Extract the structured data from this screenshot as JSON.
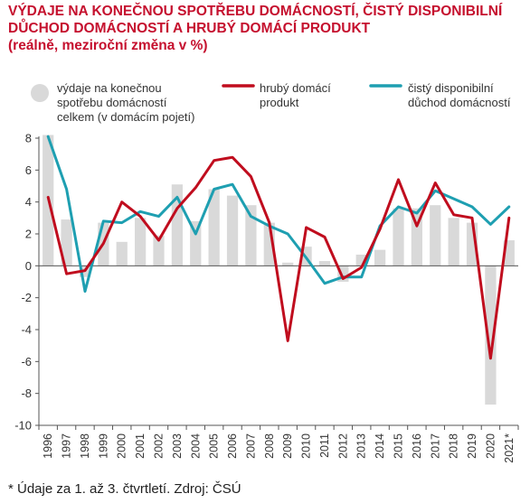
{
  "title_lines": [
    "VÝDAJE NA KONEČNOU SPOTŘEBU DOMÁCNOSTÍ, ČISTÝ DISPONIBILNÍ",
    "DŮCHOD DOMÁCNOSTÍ A HRUBÝ DOMÁCÍ PRODUKT"
  ],
  "subtitle": "(reálně, meziroční změna v %)",
  "footnote": "* Údaje za 1. až 3. čtvrtletí. Zdroj: ČSÚ",
  "colors": {
    "title": "#c5102e",
    "bars": "#d9d9d9",
    "gdp": "#c00d1e",
    "income": "#1e9fb1",
    "axis": "#555555",
    "text": "#333333"
  },
  "chart_data": {
    "type": "bar",
    "categories": [
      "1996",
      "1997",
      "1998",
      "1999",
      "2000",
      "2001",
      "2002",
      "2003",
      "2004",
      "2005",
      "2006",
      "2007",
      "2008",
      "2009",
      "2010",
      "2011",
      "2012",
      "2013",
      "2014",
      "2015",
      "2016",
      "2017",
      "2018",
      "2019",
      "2020",
      "2021*"
    ],
    "ylim": [
      -10,
      8
    ],
    "yticks": [
      -10,
      -8,
      -6,
      -4,
      -2,
      0,
      2,
      4,
      6,
      8
    ],
    "grid": false,
    "legend_position": "top",
    "series": [
      {
        "key": "consumption",
        "name": "výdaje na konečnou spotřebu domácností celkem (v domácím pojetí)",
        "legend_lines": [
          "výdaje na konečnou",
          "spotřebu domácností",
          "celkem (v domácím pojetí)"
        ],
        "type": "bar",
        "values": [
          8.2,
          2.9,
          -0.7,
          2.7,
          1.5,
          3.0,
          1.9,
          5.1,
          2.8,
          4.8,
          4.4,
          3.8,
          2.7,
          0.2,
          1.2,
          0.3,
          -1.0,
          0.7,
          1.0,
          3.6,
          3.6,
          3.8,
          3.0,
          2.7,
          -8.7,
          1.6
        ]
      },
      {
        "key": "gdp",
        "name": "hrubý domácí produkt",
        "legend_lines": [
          "hrubý domácí",
          "produkt"
        ],
        "type": "line",
        "values": [
          4.3,
          -0.5,
          -0.3,
          1.4,
          4.0,
          3.1,
          1.6,
          3.6,
          4.9,
          6.6,
          6.8,
          5.6,
          2.7,
          -4.7,
          2.4,
          1.8,
          -0.8,
          -0.1,
          2.3,
          5.4,
          2.5,
          5.2,
          3.2,
          3.0,
          -5.8,
          3.0
        ]
      },
      {
        "key": "income",
        "name": "čistý disponibilní důchod domácností",
        "legend_lines": [
          "čistý disponibilní",
          "důchod domácností"
        ],
        "type": "line",
        "values": [
          8.1,
          4.8,
          -1.6,
          2.8,
          2.7,
          3.4,
          3.1,
          4.3,
          2.0,
          4.8,
          5.1,
          3.1,
          2.5,
          2.0,
          0.5,
          -1.1,
          -0.7,
          -0.7,
          2.5,
          3.7,
          3.3,
          4.7,
          4.2,
          3.7,
          2.6,
          3.7
        ]
      }
    ]
  }
}
